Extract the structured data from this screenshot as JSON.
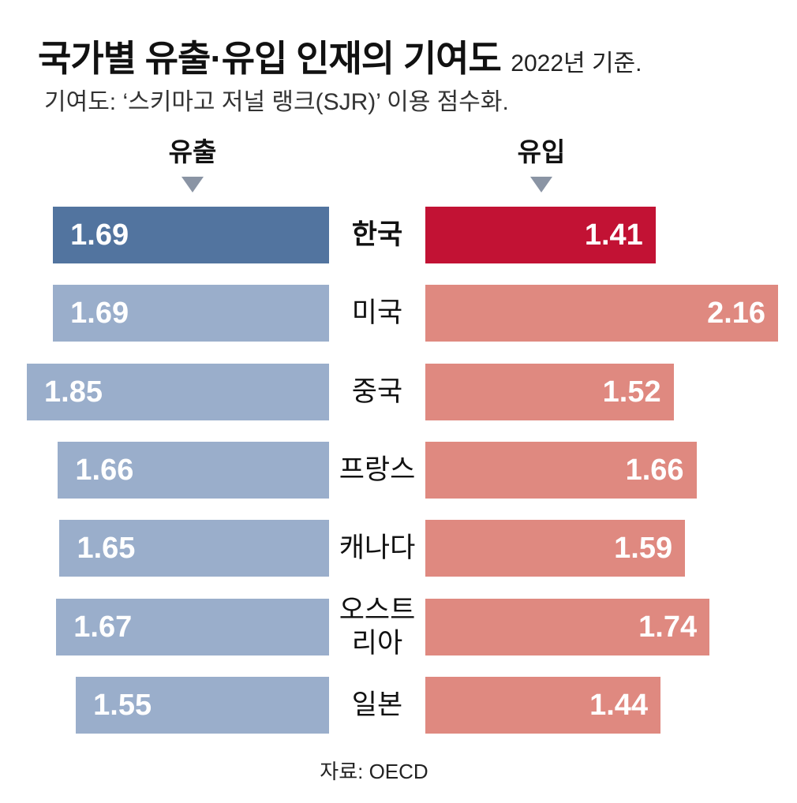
{
  "header": {
    "title": "국가별 유출·유입 인재의 기여도",
    "title_note": "2022년 기준.",
    "subtitle": "기여도: ‘스키마고 저널 랭크(SJR)’ 이용 점수화."
  },
  "columns": {
    "outflow_label": "유출",
    "inflow_label": "유입"
  },
  "source": "자료: OECD",
  "colors": {
    "outflow_highlight": "#52749f",
    "outflow": "#9aaecb",
    "inflow_highlight": "#c21234",
    "inflow": "#df8980",
    "arrow": "#8a94a4"
  },
  "chart_data": {
    "type": "bar",
    "orientation": "horizontal-diverging",
    "categories": [
      "한국",
      "미국",
      "중국",
      "프랑스",
      "캐나다",
      "오스트리아",
      "일본"
    ],
    "category_display": [
      [
        "한국"
      ],
      [
        "미국"
      ],
      [
        "중국"
      ],
      [
        "프랑스"
      ],
      [
        "캐나다"
      ],
      [
        "오스트",
        "리아"
      ],
      [
        "일본"
      ]
    ],
    "highlight_index": 0,
    "series": [
      {
        "name": "유출",
        "values": [
          1.69,
          1.69,
          1.85,
          1.66,
          1.65,
          1.67,
          1.55
        ]
      },
      {
        "name": "유입",
        "values": [
          1.41,
          2.16,
          1.52,
          1.66,
          1.59,
          1.74,
          1.44
        ]
      }
    ],
    "value_labels": {
      "outflow": [
        "1.69",
        "1.69",
        "1.85",
        "1.66",
        "1.65",
        "1.67",
        "1.55"
      ],
      "inflow": [
        "1.41",
        "2.16",
        "1.52",
        "1.66",
        "1.59",
        "1.74",
        "1.44"
      ]
    },
    "grid": false,
    "legend": "top"
  }
}
